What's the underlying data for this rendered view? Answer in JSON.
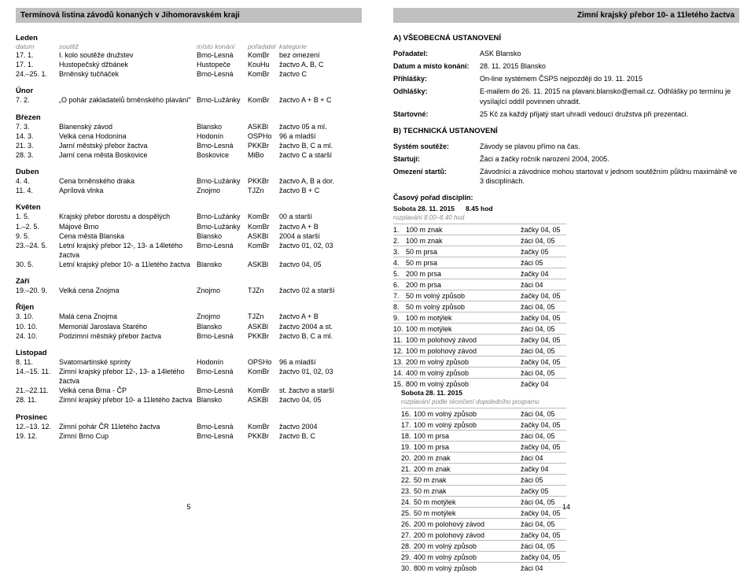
{
  "left": {
    "title": "Termínová listina závodů konaných v Jihomoravském kraji",
    "colHeaders": {
      "date": "datum",
      "name": "soutěž",
      "place": "místo konání",
      "org": "pořadatel",
      "cat": "kategorie"
    },
    "months": [
      {
        "name": "Leden",
        "showHdr": true,
        "events": [
          {
            "d": "17. 1.",
            "n": "I. kolo soutěže družstev",
            "p": "Brno-Lesná",
            "o": "KomBr",
            "c": "bez omezení"
          },
          {
            "d": "17. 1.",
            "n": "Hustopečský džbánek",
            "p": "Hustopeče",
            "o": "KouHu",
            "c": "žactvo A, B, C"
          },
          {
            "d": "24.–25. 1.",
            "n": "Brněnský tučňáček",
            "p": "Brno-Lesná",
            "o": "KomBr",
            "c": "žactvo C"
          }
        ]
      },
      {
        "name": "Únor",
        "events": [
          {
            "d": "7. 2.",
            "n": "„O pohár zakladatelů brněnského plavání\"",
            "p": "Brno-Lužánky",
            "o": "KomBr",
            "c": "žactvo A + B + C"
          }
        ]
      },
      {
        "name": "Březen",
        "events": [
          {
            "d": "7. 3.",
            "n": "Blanenský závod",
            "p": "Blansko",
            "o": "ASKBl",
            "c": "žactvo 05 a ml."
          },
          {
            "d": "14. 3.",
            "n": "Velká cena Hodonína",
            "p": "Hodonín",
            "o": "OSPHo",
            "c": "96 a mladší"
          },
          {
            "d": "21. 3.",
            "n": "Jarní městský přebor žactva",
            "p": "Brno-Lesná",
            "o": "PKKBr",
            "c": "žactvo B, C a ml."
          },
          {
            "d": "28. 3.",
            "n": "Jarní cena města Boskovice",
            "p": "Boskovice",
            "o": "MiBo",
            "c": "žactvo C a starší"
          }
        ]
      },
      {
        "name": "Duben",
        "events": [
          {
            "d": "4. 4.",
            "n": "Cena brněnského draka",
            "p": "Brno-Lužánky",
            "o": "PKKBr",
            "c": "žactvo A, B a dor."
          },
          {
            "d": "11. 4.",
            "n": "Aprílová vlnka",
            "p": "Znojmo",
            "o": "TJZn",
            "c": "žactvo B + C"
          }
        ]
      },
      {
        "name": "Květen",
        "events": [
          {
            "d": "1. 5.",
            "n": "Krajský přebor dorostu a dospělých",
            "p": "Brno-Lužánky",
            "o": "KomBr",
            "c": "00 a starší"
          },
          {
            "d": "1.–2. 5.",
            "n": "Májové Brno",
            "p": "Brno-Lužánky",
            "o": "KomBr",
            "c": "žactvo A + B"
          },
          {
            "d": "9. 5.",
            "n": "Cena města Blanska",
            "p": "Blansko",
            "o": "ASKBl",
            "c": "2004 a starší"
          },
          {
            "d": "23.–24. 5.",
            "n": "Letní krajský přebor 12-, 13- a 14letého žactva",
            "p": "Brno-Lesná",
            "o": "KomBr",
            "c": "žactvo 01, 02, 03"
          },
          {
            "d": "30. 5.",
            "n": "Letní krajský přebor 10- a 11letého žactva",
            "p": "Blansko",
            "o": "ASKBl",
            "c": "žactvo 04, 05"
          }
        ]
      },
      {
        "name": "Září",
        "events": [
          {
            "d": "19.–20. 9.",
            "n": "Velká cena Znojma",
            "p": "Znojmo",
            "o": "TJZn",
            "c": "žactvo 02 a starší"
          }
        ]
      },
      {
        "name": "Říjen",
        "events": [
          {
            "d": "3. 10.",
            "n": "Malá cena Znojma",
            "p": "Znojmo",
            "o": "TJZn",
            "c": "žactvo A + B"
          },
          {
            "d": "10. 10.",
            "n": "Memoriál Jaroslava Starého",
            "p": "Blansko",
            "o": "ASKBl",
            "c": "žactvo 2004 a st."
          },
          {
            "d": "24. 10.",
            "n": "Podzimní městský přebor žactva",
            "p": "Brno-Lesná",
            "o": "PKKBr",
            "c": "žactvo B, C a ml."
          }
        ]
      },
      {
        "name": "Listopad",
        "events": [
          {
            "d": "8. 11.",
            "n": "Svatomartinské sprinty",
            "p": "Hodonín",
            "o": "OPSHo",
            "c": "96 a mladší"
          },
          {
            "d": "14.–15. 11.",
            "n": "Zimní krajský přebor 12-, 13- a 14letého žactva",
            "p": "Brno-Lesná",
            "o": "KomBr",
            "c": "žactvo 01, 02, 03"
          },
          {
            "d": "21.–22.11.",
            "n": "Velká cena Brna - ČP",
            "p": "Brno-Lesná",
            "o": "KomBr",
            "c": "st. žactvo a starší"
          },
          {
            "d": "28. 11.",
            "n": "Zimní krajský přebor 10- a 11letého žactva",
            "p": "Blansko",
            "o": "ASKBl",
            "c": "žactvo 04, 05"
          }
        ]
      },
      {
        "name": "Prosinec",
        "events": [
          {
            "d": "12.–13. 12.",
            "n": "Zimní pohár ČR 11letého žactva",
            "p": "Brno-Lesná",
            "o": "KomBr",
            "c": "žactvo 2004"
          },
          {
            "d": "19. 12.",
            "n": "Zimní Brno Cup",
            "p": "Brno-Lesná",
            "o": "PKKBr",
            "c": "žactvo B, C"
          }
        ]
      }
    ],
    "pageNum": "5"
  },
  "right": {
    "title": "Zimní krajský přebor 10- a 11letého žactva",
    "secA": "A) VŠEOBECNÁ USTANOVENÍ",
    "info": [
      {
        "l": "Pořadatel:",
        "v": "ASK Blansko"
      },
      {
        "l": "Datum a místo konání:",
        "v": "28. 11. 2015 Blansko"
      },
      {
        "l": "Přihlášky:",
        "v": "On-line systémem ČSPS nejpozději do 19. 11. 2015"
      },
      {
        "l": "Odhlášky:",
        "v": "E-mailem do 26. 11. 2015 na plavani.blansko@email.cz. Odhlášky po termínu je vysílající oddíl povinnen uhradit."
      },
      {
        "l": "Startovné:",
        "v": "25 Kč za každý přijatý start uhradí vedoucí družstva při prezentaci."
      }
    ],
    "secB": "B) TECHNICKÁ USTANOVENÍ",
    "tech": [
      {
        "l": "Systém soutěže:",
        "v": "Závody se plavou přímo na čas."
      },
      {
        "l": "Startují:",
        "v": "Žáci a žačky ročník narození 2004, 2005."
      },
      {
        "l": "Omezení startů:",
        "v": "Závodníci a závodnice mohou startovat v jednom soutěžním půldnu maximálně ve 3 disciplínách."
      }
    ],
    "discHdr": "Časový pořad disciplín:",
    "colL": {
      "date": "Sobota 28. 11. 2015",
      "time": "8.45 hod",
      "sub": "rozplavání 8.00–8.40 hod"
    },
    "colR": {
      "date": "Sobota 28. 11. 2015",
      "sub": "rozplavání podle skončení dopoledního programu"
    },
    "discL": [
      {
        "n": "1.",
        "e": "100 m znak",
        "a": "žačky 04, 05"
      },
      {
        "n": "2.",
        "e": "100 m znak",
        "a": "žáci 04, 05"
      },
      {
        "n": "3.",
        "e": "50 m prsa",
        "a": "žačky 05"
      },
      {
        "n": "4.",
        "e": "50 m prsa",
        "a": "žáci 05"
      },
      {
        "n": "5.",
        "e": "200 m prsa",
        "a": "žačky 04"
      },
      {
        "n": "6.",
        "e": "200 m prsa",
        "a": "žáci 04"
      },
      {
        "n": "7.",
        "e": "50 m volný způsob",
        "a": "žačky 04, 05"
      },
      {
        "n": "8.",
        "e": "50 m volný způsob",
        "a": "žáci 04, 05"
      },
      {
        "n": "9.",
        "e": "100 m motýlek",
        "a": "žačky 04, 05"
      },
      {
        "n": "10.",
        "e": "100 m motýlek",
        "a": "žáci 04, 05"
      },
      {
        "n": "11.",
        "e": "100 m polohový závod",
        "a": "žačky 04, 05"
      },
      {
        "n": "12.",
        "e": "100 m polohový závod",
        "a": "žáci 04, 05"
      },
      {
        "n": "13.",
        "e": "200 m volný způsob",
        "a": "žačky 04, 05"
      },
      {
        "n": "14.",
        "e": "400 m volný způsob",
        "a": "žáci 04, 05"
      },
      {
        "n": "15.",
        "e": "800 m volný způsob",
        "a": "žačky 04"
      }
    ],
    "discR": [
      {
        "n": "16.",
        "e": "100 m volný způsob",
        "a": "žáci 04, 05"
      },
      {
        "n": "17.",
        "e": "100 m volný způsob",
        "a": "žačky 04, 05"
      },
      {
        "n": "18.",
        "e": "100 m prsa",
        "a": "žáci 04, 05"
      },
      {
        "n": "19.",
        "e": "100 m prsa",
        "a": "žačky 04, 05"
      },
      {
        "n": "20.",
        "e": "200 m znak",
        "a": "žáci 04"
      },
      {
        "n": "21.",
        "e": "200 m znak",
        "a": "žačky 04"
      },
      {
        "n": "22.",
        "e": "50 m znak",
        "a": "žáci 05"
      },
      {
        "n": "23.",
        "e": "50 m znak",
        "a": "žačky 05"
      },
      {
        "n": "24.",
        "e": "50 m motýlek",
        "a": "žáci 04, 05"
      },
      {
        "n": "25.",
        "e": "50 m motýlek",
        "a": "žačky 04, 05"
      },
      {
        "n": "26.",
        "e": "200 m polohový závod",
        "a": "žáci 04, 05"
      },
      {
        "n": "27.",
        "e": "200 m polohový závod",
        "a": "žačky 04, 05"
      },
      {
        "n": "28.",
        "e": "200 m volný způsob",
        "a": "žáci 04, 05"
      },
      {
        "n": "29.",
        "e": "400 m volný způsob",
        "a": "žačky 04, 05"
      },
      {
        "n": "30.",
        "e": "800 m volný způsob",
        "a": "žáci 04"
      }
    ],
    "pageNum": "14"
  }
}
